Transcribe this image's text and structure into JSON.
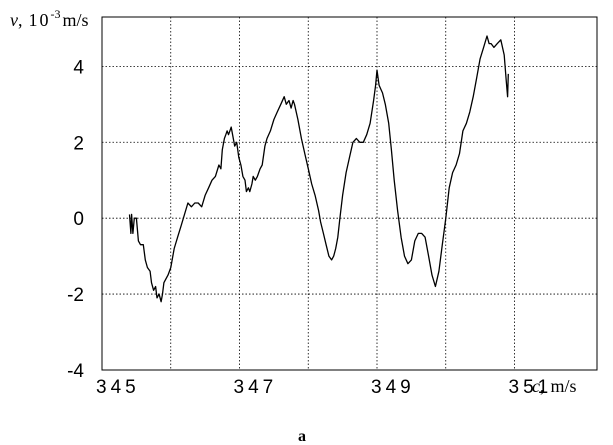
{
  "chart_data": {
    "type": "line",
    "title": "",
    "subtitle": "a",
    "ylabel": {
      "var": "v",
      "sep": ",",
      "base": "10",
      "exp": "-3",
      "unit": "m/s"
    },
    "xlabel": {
      "var": "c",
      "sep": ",",
      "unit": "m/s"
    },
    "xlim": [
      345,
      352.2
    ],
    "ylim": [
      -4,
      5.3
    ],
    "xticks": [
      345,
      347,
      349,
      351
    ],
    "xtick_labels": [
      "345",
      "347",
      "349",
      "351"
    ],
    "yticks": [
      -4,
      -2,
      0,
      2,
      4
    ],
    "ytick_labels": [
      "-4",
      "-2",
      "0",
      "2",
      "4"
    ],
    "grid": true,
    "grid_x": [
      346,
      347,
      348,
      349,
      350,
      351
    ],
    "grid_y": [
      -2,
      0,
      2,
      4
    ],
    "line_color": "#000000",
    "series": [
      {
        "points": [
          [
            345.4,
            0.1
          ],
          [
            345.42,
            -0.4
          ],
          [
            345.43,
            0.1
          ],
          [
            345.45,
            -0.4
          ],
          [
            345.47,
            0.0
          ],
          [
            345.5,
            0.0
          ],
          [
            345.53,
            -0.6
          ],
          [
            345.56,
            -0.7
          ],
          [
            345.6,
            -0.7
          ],
          [
            345.63,
            -1.1
          ],
          [
            345.66,
            -1.3
          ],
          [
            345.7,
            -1.4
          ],
          [
            345.72,
            -1.7
          ],
          [
            345.75,
            -1.9
          ],
          [
            345.78,
            -1.8
          ],
          [
            345.8,
            -2.1
          ],
          [
            345.83,
            -2.0
          ],
          [
            345.86,
            -2.2
          ],
          [
            345.88,
            -2.0
          ],
          [
            345.9,
            -1.7
          ],
          [
            345.93,
            -1.6
          ],
          [
            345.96,
            -1.5
          ],
          [
            346.0,
            -1.3
          ],
          [
            346.05,
            -0.8
          ],
          [
            346.1,
            -0.5
          ],
          [
            346.15,
            -0.2
          ],
          [
            346.2,
            0.1
          ],
          [
            346.25,
            0.4
          ],
          [
            346.3,
            0.3
          ],
          [
            346.35,
            0.4
          ],
          [
            346.4,
            0.4
          ],
          [
            346.45,
            0.3
          ],
          [
            346.5,
            0.6
          ],
          [
            346.55,
            0.8
          ],
          [
            346.6,
            1.0
          ],
          [
            346.65,
            1.1
          ],
          [
            346.7,
            1.4
          ],
          [
            346.73,
            1.3
          ],
          [
            346.75,
            1.8
          ],
          [
            346.78,
            2.1
          ],
          [
            346.8,
            2.2
          ],
          [
            346.82,
            2.3
          ],
          [
            346.84,
            2.2
          ],
          [
            346.86,
            2.3
          ],
          [
            346.88,
            2.4
          ],
          [
            346.9,
            2.2
          ],
          [
            346.93,
            1.9
          ],
          [
            346.96,
            2.0
          ],
          [
            346.99,
            1.6
          ],
          [
            347.02,
            1.4
          ],
          [
            347.05,
            1.1
          ],
          [
            347.08,
            1.0
          ],
          [
            347.1,
            0.7
          ],
          [
            347.13,
            0.8
          ],
          [
            347.15,
            0.7
          ],
          [
            347.18,
            0.9
          ],
          [
            347.2,
            1.1
          ],
          [
            347.23,
            1.0
          ],
          [
            347.26,
            1.1
          ],
          [
            347.3,
            1.3
          ],
          [
            347.33,
            1.4
          ],
          [
            347.37,
            1.9
          ],
          [
            347.4,
            2.1
          ],
          [
            347.45,
            2.3
          ],
          [
            347.5,
            2.6
          ],
          [
            347.55,
            2.8
          ],
          [
            347.6,
            3.0
          ],
          [
            347.65,
            3.2
          ],
          [
            347.68,
            3.0
          ],
          [
            347.72,
            3.1
          ],
          [
            347.75,
            2.9
          ],
          [
            347.78,
            3.1
          ],
          [
            347.8,
            3.0
          ],
          [
            347.85,
            2.6
          ],
          [
            347.9,
            2.1
          ],
          [
            347.95,
            1.7
          ],
          [
            348.0,
            1.3
          ],
          [
            348.05,
            0.9
          ],
          [
            348.1,
            0.6
          ],
          [
            348.15,
            0.2
          ],
          [
            348.18,
            -0.1
          ],
          [
            348.22,
            -0.4
          ],
          [
            348.26,
            -0.7
          ],
          [
            348.3,
            -1.0
          ],
          [
            348.34,
            -1.1
          ],
          [
            348.37,
            -1.0
          ],
          [
            348.4,
            -0.8
          ],
          [
            348.43,
            -0.5
          ],
          [
            348.46,
            0.0
          ],
          [
            348.5,
            0.6
          ],
          [
            348.55,
            1.2
          ],
          [
            348.6,
            1.6
          ],
          [
            348.65,
            2.0
          ],
          [
            348.7,
            2.1
          ],
          [
            348.75,
            2.0
          ],
          [
            348.8,
            2.0
          ],
          [
            348.85,
            2.2
          ],
          [
            348.9,
            2.5
          ],
          [
            348.95,
            3.1
          ],
          [
            348.98,
            3.5
          ],
          [
            349.0,
            3.9
          ],
          [
            349.03,
            3.5
          ],
          [
            349.08,
            3.3
          ],
          [
            349.12,
            3.0
          ],
          [
            349.17,
            2.5
          ],
          [
            349.21,
            1.8
          ],
          [
            349.25,
            1.0
          ],
          [
            349.3,
            0.2
          ],
          [
            349.35,
            -0.5
          ],
          [
            349.4,
            -1.0
          ],
          [
            349.45,
            -1.2
          ],
          [
            349.5,
            -1.1
          ],
          [
            349.55,
            -0.6
          ],
          [
            349.6,
            -0.4
          ],
          [
            349.65,
            -0.4
          ],
          [
            349.7,
            -0.5
          ],
          [
            349.75,
            -1.0
          ],
          [
            349.8,
            -1.5
          ],
          [
            349.85,
            -1.8
          ],
          [
            349.9,
            -1.4
          ],
          [
            349.95,
            -0.7
          ],
          [
            350.0,
            0.0
          ],
          [
            350.05,
            0.8
          ],
          [
            350.1,
            1.2
          ],
          [
            350.15,
            1.4
          ],
          [
            350.2,
            1.7
          ],
          [
            350.25,
            2.3
          ],
          [
            350.3,
            2.5
          ],
          [
            350.35,
            2.8
          ],
          [
            350.4,
            3.2
          ],
          [
            350.45,
            3.7
          ],
          [
            350.5,
            4.2
          ],
          [
            350.55,
            4.5
          ],
          [
            350.6,
            4.8
          ],
          [
            350.63,
            4.6
          ],
          [
            350.66,
            4.6
          ],
          [
            350.7,
            4.5
          ],
          [
            350.75,
            4.6
          ],
          [
            350.8,
            4.7
          ],
          [
            350.85,
            4.3
          ],
          [
            350.88,
            3.6
          ],
          [
            350.9,
            3.2
          ],
          [
            350.91,
            3.8
          ]
        ]
      }
    ]
  }
}
